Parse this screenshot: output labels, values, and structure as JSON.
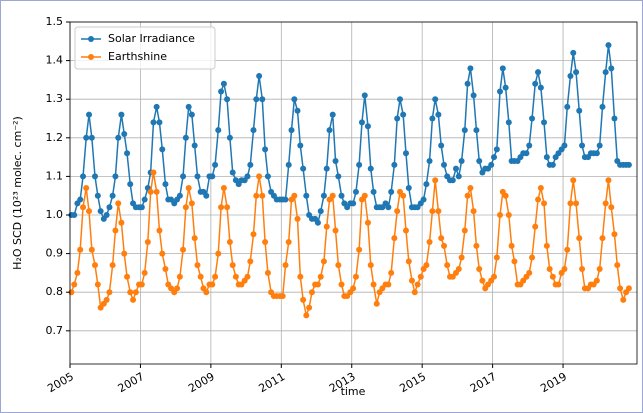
{
  "chart_data": {
    "type": "line",
    "xlabel": "time",
    "ylabel": "H₂O SCD (10²³ molec. cm⁻²)",
    "xlim": [
      2005,
      2021.1
    ],
    "ylim": [
      0.614,
      1.5
    ],
    "xticks": [
      2005,
      2007,
      2009,
      2011,
      2013,
      2015,
      2017,
      2019
    ],
    "yticks": [
      0.7,
      0.8,
      0.9,
      {
        "value": 1,
        "label": "1.0"
      },
      1.1,
      1.2,
      1.3,
      1.4,
      1.5
    ],
    "grid": true,
    "legend": "upper left",
    "x": [
      2005.04,
      2005.12,
      2005.21,
      2005.29,
      2005.37,
      2005.46,
      2005.54,
      2005.62,
      2005.71,
      2005.79,
      2005.87,
      2005.96,
      2006.04,
      2006.12,
      2006.21,
      2006.29,
      2006.37,
      2006.46,
      2006.54,
      2006.62,
      2006.71,
      2006.79,
      2006.87,
      2006.96,
      2007.04,
      2007.12,
      2007.21,
      2007.29,
      2007.37,
      2007.46,
      2007.54,
      2007.62,
      2007.71,
      2007.79,
      2007.87,
      2007.96,
      2008.04,
      2008.12,
      2008.21,
      2008.29,
      2008.37,
      2008.46,
      2008.54,
      2008.62,
      2008.71,
      2008.79,
      2008.87,
      2008.96,
      2009.04,
      2009.12,
      2009.21,
      2009.29,
      2009.37,
      2009.46,
      2009.54,
      2009.62,
      2009.71,
      2009.79,
      2009.87,
      2009.96,
      2010.04,
      2010.12,
      2010.21,
      2010.29,
      2010.37,
      2010.46,
      2010.54,
      2010.62,
      2010.71,
      2010.79,
      2010.87,
      2010.96,
      2011.04,
      2011.12,
      2011.21,
      2011.29,
      2011.37,
      2011.46,
      2011.54,
      2011.62,
      2011.71,
      2011.79,
      2011.87,
      2011.96,
      2012.04,
      2012.12,
      2012.21,
      2012.29,
      2012.37,
      2012.46,
      2012.54,
      2012.62,
      2012.71,
      2012.79,
      2012.87,
      2012.96,
      2013.04,
      2013.12,
      2013.21,
      2013.29,
      2013.37,
      2013.46,
      2013.54,
      2013.62,
      2013.71,
      2013.79,
      2013.87,
      2013.96,
      2014.04,
      2014.12,
      2014.21,
      2014.29,
      2014.37,
      2014.46,
      2014.54,
      2014.62,
      2014.71,
      2014.79,
      2014.87,
      2014.96,
      2015.04,
      2015.12,
      2015.21,
      2015.29,
      2015.37,
      2015.46,
      2015.54,
      2015.62,
      2015.71,
      2015.79,
      2015.87,
      2015.96,
      2016.04,
      2016.12,
      2016.21,
      2016.29,
      2016.37,
      2016.46,
      2016.54,
      2016.62,
      2016.71,
      2016.79,
      2016.87,
      2016.96,
      2017.04,
      2017.12,
      2017.21,
      2017.29,
      2017.37,
      2017.46,
      2017.54,
      2017.62,
      2017.71,
      2017.79,
      2017.87,
      2017.96,
      2018.04,
      2018.12,
      2018.21,
      2018.29,
      2018.37,
      2018.46,
      2018.54,
      2018.62,
      2018.71,
      2018.79,
      2018.87,
      2018.96,
      2019.04,
      2019.12,
      2019.21,
      2019.29,
      2019.37,
      2019.46,
      2019.54,
      2019.62,
      2019.71,
      2019.79,
      2019.87,
      2019.96,
      2020.04,
      2020.12,
      2020.21,
      2020.29,
      2020.37,
      2020.46,
      2020.54,
      2020.62,
      2020.71,
      2020.79,
      2020.87
    ],
    "series": [
      {
        "name": "Solar Irradiance",
        "color": "#1f77b4",
        "values": [
          1.0,
          1.0,
          1.03,
          1.04,
          1.1,
          1.2,
          1.26,
          1.2,
          1.1,
          1.05,
          1.01,
          0.99,
          1.0,
          1.02,
          1.05,
          1.1,
          1.2,
          1.26,
          1.21,
          1.16,
          1.08,
          1.03,
          1.02,
          1.02,
          1.02,
          1.04,
          1.07,
          1.11,
          1.24,
          1.28,
          1.24,
          1.17,
          1.08,
          1.04,
          1.04,
          1.03,
          1.04,
          1.05,
          1.1,
          1.2,
          1.28,
          1.26,
          1.18,
          1.1,
          1.06,
          1.06,
          1.05,
          1.1,
          1.1,
          1.13,
          1.22,
          1.32,
          1.34,
          1.3,
          1.2,
          1.11,
          1.09,
          1.08,
          1.09,
          1.09,
          1.1,
          1.13,
          1.22,
          1.3,
          1.36,
          1.3,
          1.17,
          1.1,
          1.06,
          1.05,
          1.04,
          1.04,
          1.04,
          1.04,
          1.13,
          1.22,
          1.3,
          1.27,
          1.18,
          1.12,
          1.05,
          1.0,
          0.99,
          0.99,
          0.98,
          1.01,
          1.05,
          1.12,
          1.22,
          1.26,
          1.14,
          1.1,
          1.05,
          1.03,
          1.02,
          1.03,
          1.03,
          1.06,
          1.13,
          1.24,
          1.31,
          1.23,
          1.12,
          1.06,
          1.02,
          1.02,
          1.02,
          1.03,
          1.02,
          1.06,
          1.13,
          1.25,
          1.3,
          1.26,
          1.16,
          1.07,
          1.02,
          1.02,
          1.02,
          1.03,
          1.04,
          1.08,
          1.14,
          1.25,
          1.3,
          1.26,
          1.18,
          1.13,
          1.1,
          1.09,
          1.09,
          1.12,
          1.1,
          1.14,
          1.22,
          1.34,
          1.38,
          1.31,
          1.22,
          1.14,
          1.11,
          1.12,
          1.12,
          1.13,
          1.15,
          1.17,
          1.32,
          1.38,
          1.33,
          1.24,
          1.14,
          1.14,
          1.14,
          1.15,
          1.16,
          1.16,
          1.18,
          1.25,
          1.34,
          1.37,
          1.33,
          1.24,
          1.15,
          1.13,
          1.13,
          1.15,
          1.16,
          1.17,
          1.18,
          1.28,
          1.36,
          1.42,
          1.37,
          1.27,
          1.18,
          1.15,
          1.15,
          1.16,
          1.16,
          1.16,
          1.18,
          1.28,
          1.37,
          1.44,
          1.38,
          1.25,
          1.14,
          1.13,
          1.13,
          1.13,
          1.13
        ]
      },
      {
        "name": "Earthshine",
        "color": "#ff7f0e",
        "values": [
          0.8,
          0.82,
          0.85,
          0.91,
          1.02,
          1.07,
          1.01,
          0.91,
          0.87,
          0.82,
          0.76,
          0.77,
          0.78,
          0.8,
          0.87,
          0.96,
          1.03,
          0.98,
          0.9,
          0.84,
          0.8,
          0.78,
          0.8,
          0.82,
          0.82,
          0.85,
          0.93,
          1.06,
          1.11,
          1.06,
          0.96,
          0.9,
          0.86,
          0.82,
          0.81,
          0.8,
          0.81,
          0.84,
          0.91,
          1.02,
          1.07,
          1.03,
          0.94,
          0.87,
          0.84,
          0.81,
          0.8,
          0.82,
          0.82,
          0.84,
          0.9,
          1.02,
          1.07,
          1.02,
          0.93,
          0.87,
          0.84,
          0.82,
          0.82,
          0.83,
          0.84,
          0.88,
          0.95,
          1.05,
          1.1,
          1.05,
          0.93,
          0.85,
          0.8,
          0.79,
          0.79,
          0.79,
          0.79,
          0.87,
          0.93,
          1.04,
          1.05,
          0.99,
          0.84,
          0.78,
          0.74,
          0.76,
          0.8,
          0.82,
          0.82,
          0.84,
          0.88,
          0.97,
          1.04,
          1.05,
          0.96,
          0.87,
          0.82,
          0.79,
          0.79,
          0.8,
          0.81,
          0.84,
          0.91,
          1.04,
          1.05,
          0.98,
          0.87,
          0.82,
          0.77,
          0.8,
          0.81,
          0.82,
          0.82,
          0.85,
          0.94,
          1.01,
          1.06,
          1.05,
          0.96,
          0.88,
          0.83,
          0.8,
          0.82,
          0.84,
          0.86,
          0.87,
          0.93,
          1.01,
          1.09,
          1.01,
          0.94,
          0.92,
          0.87,
          0.84,
          0.84,
          0.85,
          0.86,
          0.89,
          0.96,
          1.05,
          1.07,
          1.01,
          0.92,
          0.86,
          0.83,
          0.81,
          0.82,
          0.83,
          0.84,
          0.89,
          1.0,
          1.06,
          1.05,
          1.0,
          0.92,
          0.88,
          0.82,
          0.82,
          0.83,
          0.84,
          0.85,
          0.89,
          0.97,
          1.04,
          1.07,
          1.03,
          0.92,
          0.86,
          0.84,
          0.82,
          0.82,
          0.85,
          0.86,
          0.91,
          1.03,
          1.09,
          1.03,
          0.94,
          0.86,
          0.81,
          0.81,
          0.82,
          0.82,
          0.83,
          0.86,
          0.94,
          1.03,
          1.09,
          1.02,
          0.95,
          0.87,
          0.81,
          0.78,
          0.8,
          0.81
        ]
      }
    ]
  }
}
